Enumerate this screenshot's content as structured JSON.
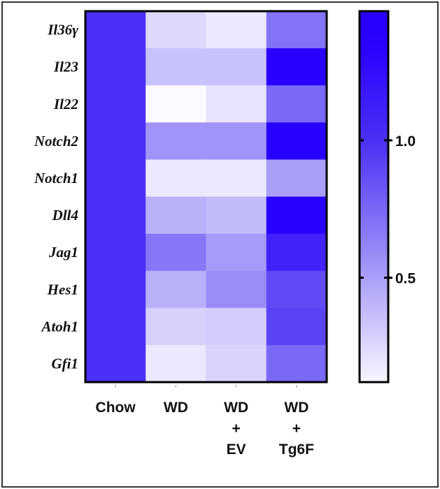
{
  "chart_data": {
    "type": "heatmap",
    "rows": [
      "Il36γ",
      "Il23",
      "Il22",
      "Notch2",
      "Notch1",
      "Dll4",
      "Jag1",
      "Hes1",
      "Atoh1",
      "Gfi1"
    ],
    "columns": [
      [
        "Chow"
      ],
      [
        "WD"
      ],
      [
        "WD",
        "+",
        "EV"
      ],
      [
        "WD",
        "+",
        "Tg6F"
      ]
    ],
    "values": [
      [
        1.0,
        0.25,
        0.18,
        0.7
      ],
      [
        1.0,
        0.35,
        0.35,
        1.35
      ],
      [
        1.0,
        0.1,
        0.2,
        0.75
      ],
      [
        1.0,
        0.55,
        0.55,
        1.4
      ],
      [
        1.0,
        0.18,
        0.18,
        0.5
      ],
      [
        1.0,
        0.42,
        0.38,
        1.4
      ],
      [
        1.0,
        0.68,
        0.52,
        1.1
      ],
      [
        1.0,
        0.42,
        0.58,
        0.88
      ],
      [
        1.0,
        0.28,
        0.3,
        0.92
      ],
      [
        1.0,
        0.18,
        0.27,
        0.75
      ]
    ],
    "colorbar": {
      "range": [
        0.12,
        1.47
      ],
      "ticks": [
        1.0,
        0.5
      ],
      "tick_labels": [
        "1.0",
        "0.5"
      ],
      "colors": {
        "low": "#fbfbff",
        "mid": "#a99ff8",
        "one": "#4b30f5",
        "high": "#2800ff"
      }
    }
  }
}
